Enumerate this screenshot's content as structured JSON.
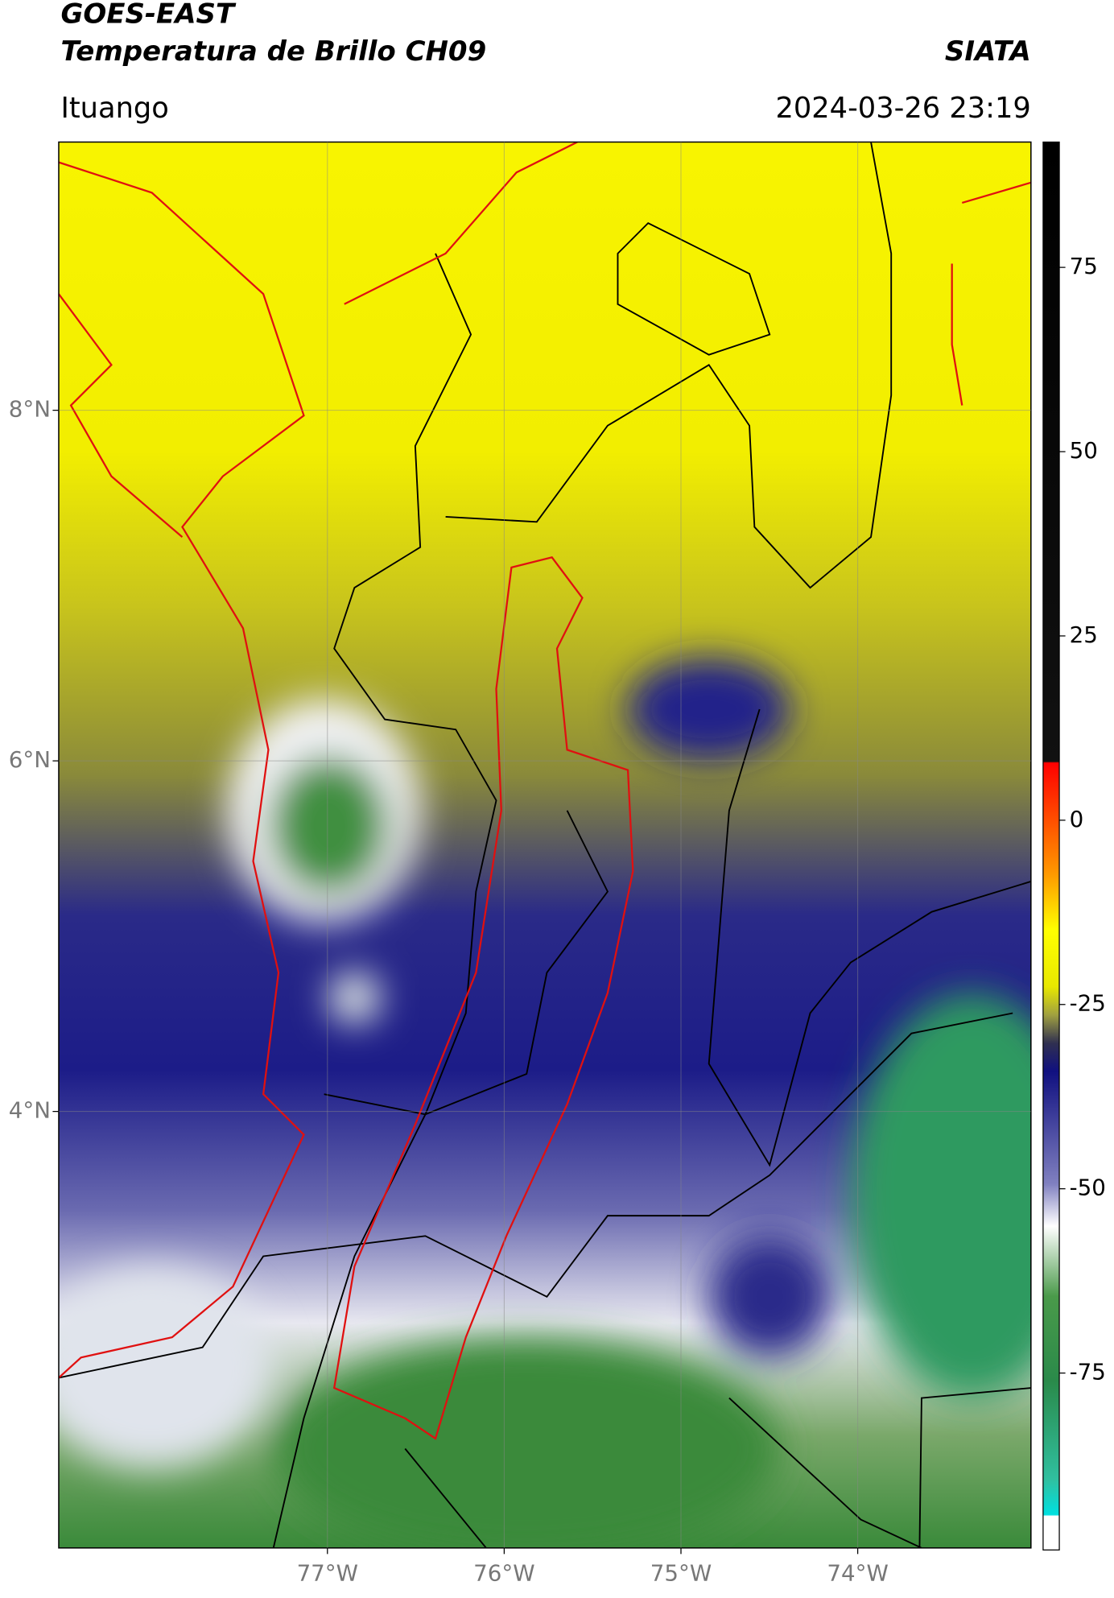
{
  "header": {
    "title": "GOES-EAST",
    "subtitle": "Temperatura de Brillo CH09",
    "credit": "SIATA",
    "location": "Ituango",
    "datetime": "2024-03-26 23:19"
  },
  "chart_data": {
    "type": "map",
    "xlim": [
      -78.52,
      -73.02
    ],
    "ylim": [
      1.51,
      9.53
    ],
    "xticks": [
      {
        "value": -77,
        "label": "77°W"
      },
      {
        "value": -76,
        "label": "76°W"
      },
      {
        "value": -75,
        "label": "75°W"
      },
      {
        "value": -74,
        "label": "74°W"
      }
    ],
    "yticks": [
      {
        "value": 4,
        "label": "4°N"
      },
      {
        "value": 6,
        "label": "6°N"
      },
      {
        "value": 8,
        "label": "8°N"
      }
    ],
    "grid": true,
    "colorbar": {
      "lim": [
        -99,
        92
      ],
      "ticks": [
        -75,
        -50,
        -25,
        0,
        25,
        50,
        75
      ]
    }
  }
}
